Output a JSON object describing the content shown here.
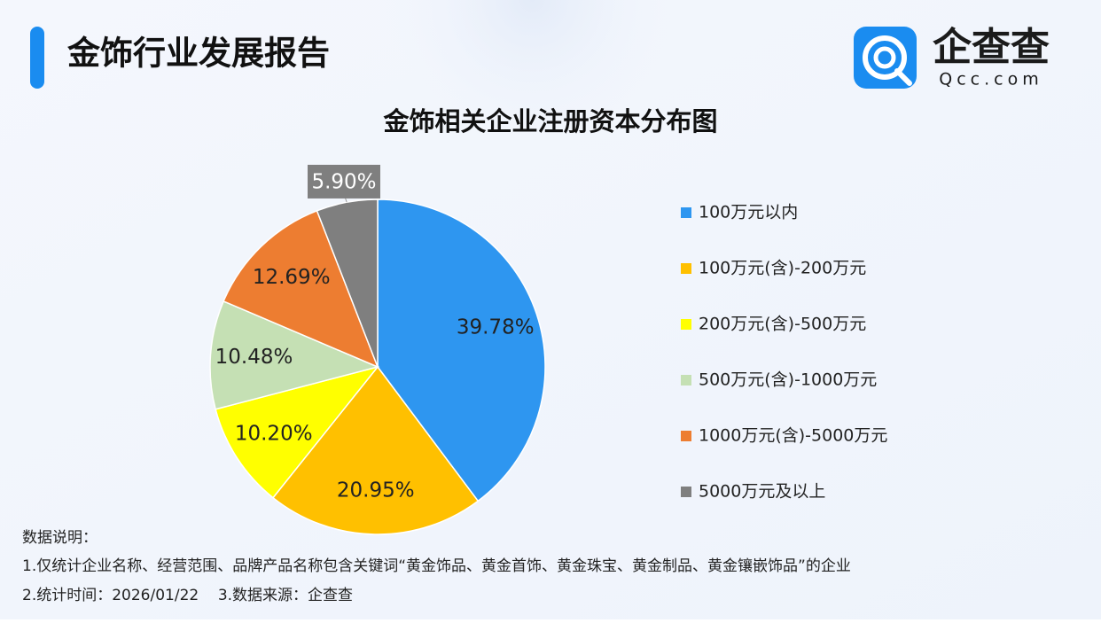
{
  "header": {
    "title": "金饰行业发展报告",
    "logo_name": "企查查",
    "logo_domain": "Qcc.com"
  },
  "chart_data": {
    "type": "pie",
    "title": "金饰相关企业注册资本分布图",
    "categories": [
      "100万元以内",
      "100万元(含)-200万元",
      "200万元(含)-500万元",
      "500万元(含)-1000万元",
      "1000万元(含)-5000万元",
      "5000万元及以上"
    ],
    "values": [
      39.78,
      20.95,
      10.2,
      10.48,
      12.69,
      5.9
    ],
    "value_labels": [
      "39.78%",
      "20.95%",
      "10.20%",
      "10.48%",
      "12.69%",
      "5.90%"
    ],
    "colors": [
      "#2e96f0",
      "#ffc000",
      "#ffff00",
      "#c5e0b4",
      "#ed7d31",
      "#7f7f7f"
    ],
    "legend": "right"
  },
  "notes": {
    "heading": "数据说明：",
    "lines": [
      "1.仅统计企业名称、经营范围、品牌产品名称包含关键词“黄金饰品、黄金首饰、黄金珠宝、黄金制品、黄金镶嵌饰品”的企业",
      "2.统计时间：2026/01/22    3.数据来源：企查查"
    ]
  }
}
